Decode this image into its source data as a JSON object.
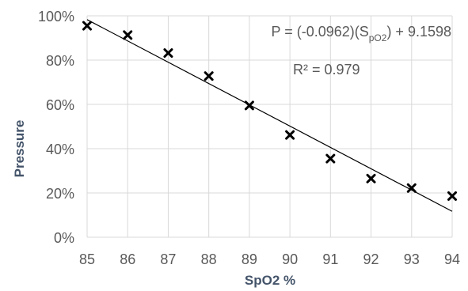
{
  "chart_data": {
    "type": "scatter",
    "title": "",
    "xlabel": "SpO2 %",
    "ylabel": "Pressure",
    "xlim": [
      85,
      94
    ],
    "ylim": [
      0,
      1
    ],
    "x_ticks": [
      "85",
      "86",
      "87",
      "88",
      "89",
      "90",
      "91",
      "92",
      "93",
      "94"
    ],
    "y_ticks": [
      "0%",
      "20%",
      "40%",
      "60%",
      "80%",
      "100%"
    ],
    "grid": true,
    "series": [
      {
        "marker": "x",
        "color": "#000000",
        "points": [
          {
            "x": 85,
            "y": 0.955
          },
          {
            "x": 86,
            "y": 0.913
          },
          {
            "x": 87,
            "y": 0.832
          },
          {
            "x": 88,
            "y": 0.728
          },
          {
            "x": 89,
            "y": 0.595
          },
          {
            "x": 90,
            "y": 0.462
          },
          {
            "x": 91,
            "y": 0.355
          },
          {
            "x": 92,
            "y": 0.265
          },
          {
            "x": 93,
            "y": 0.222
          },
          {
            "x": 94,
            "y": 0.186
          }
        ]
      }
    ],
    "trendline": {
      "type": "linear",
      "slope": -0.0962,
      "intercept": 9.1598,
      "equation_prefix": "P = (-0.0962)(S",
      "equation_sub": "pO2",
      "equation_suffix": ") + 9.1598",
      "r_squared_label": "R² = 0.979",
      "color": "#000000"
    },
    "colors": {
      "grid": "#d9d9d9",
      "tick_text": "#595959",
      "axis_title": "#44546a"
    }
  }
}
